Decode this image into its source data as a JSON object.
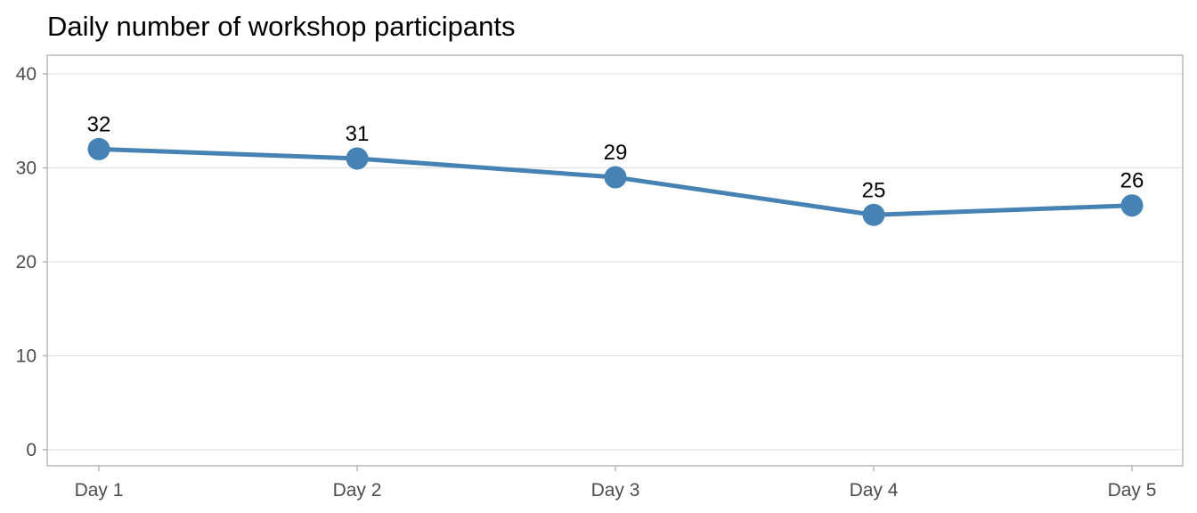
{
  "chart_data": {
    "type": "line",
    "title": "Daily number of workshop participants",
    "xlabel": "",
    "ylabel": "",
    "categories": [
      "Day 1",
      "Day 2",
      "Day 3",
      "Day 4",
      "Day 5"
    ],
    "series": [
      {
        "values": [
          32,
          31,
          29,
          25,
          26
        ]
      }
    ],
    "data_labels": [
      "32",
      "31",
      "29",
      "25",
      "26"
    ],
    "ylim": [
      0,
      40
    ],
    "yticks": [
      0,
      10,
      20,
      30,
      40
    ],
    "ytick_labels": [
      "0",
      "10",
      "20",
      "30",
      "40"
    ],
    "grid": true,
    "legend": "none",
    "colors": {
      "series": "#4682b4",
      "grid": "#dedede",
      "border": "#b3b3b3",
      "tick_text": "#4d4d4d"
    }
  }
}
